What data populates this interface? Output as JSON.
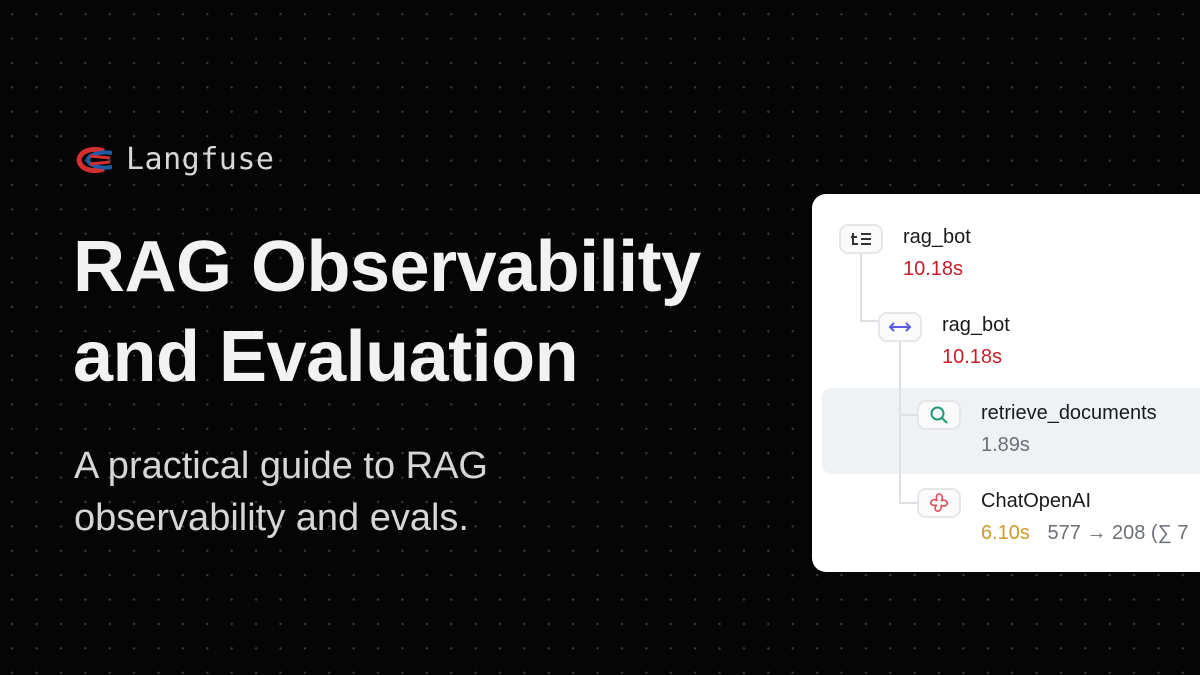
{
  "brand": {
    "name": "Langfuse",
    "logo_colors": [
      "#d32f2f",
      "#1e5aa8"
    ]
  },
  "hero": {
    "title_line1": "RAG Observability",
    "title_line2": "and Evaluation",
    "subtitle_line1": "A practical guide to RAG",
    "subtitle_line2": "observability and evals."
  },
  "trace": {
    "nodes": [
      {
        "name": "rag_bot",
        "duration": "10.18s",
        "icon": "trace-list-icon",
        "duration_color": "#c81e2a"
      },
      {
        "name": "rag_bot",
        "duration": "10.18s",
        "icon": "span-arrows-icon",
        "duration_color": "#c81e2a"
      },
      {
        "name": "retrieve_documents",
        "duration": "1.89s",
        "icon": "search-icon",
        "duration_color": "#6b6f76",
        "selected": true
      },
      {
        "name": "ChatOpenAI",
        "duration": "6.10s",
        "icon": "openai-generation-icon",
        "duration_color": "#cc9a2a",
        "tokens": "577 → 208 (∑ 7"
      }
    ]
  }
}
